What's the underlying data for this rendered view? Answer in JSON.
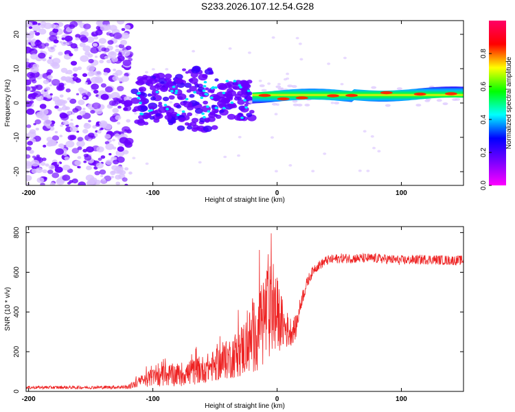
{
  "title": "S233.2026.107.12.54.G28",
  "colors": {
    "snr_line": "#ee2222",
    "blob_strong": "#6a00ff",
    "blob_weak": "#d9c2ff"
  },
  "chart_data": [
    {
      "type": "heatmap",
      "name": "spectrogram",
      "xlabel": "Height of straight line (km)",
      "ylabel": "Frequency (Hz)",
      "xlim": [
        -202,
        150
      ],
      "ylim": [
        -24,
        24
      ],
      "xticks": [
        -200,
        -100,
        0,
        100
      ],
      "yticks": [
        -20,
        -10,
        0,
        10,
        20
      ],
      "grid": false,
      "colorbar": {
        "label": "Normalized spectral amplitude",
        "range": [
          0,
          1
        ],
        "ticks": [
          0.0,
          0.2,
          0.4,
          0.6,
          0.8
        ],
        "tick_labels": [
          "0.0",
          "0.2",
          "0.4",
          "0.6",
          "0.8"
        ],
        "colormap": [
          "#ff00ff",
          "#7a00ff",
          "#0000ff",
          "#00ffff",
          "#00ff00",
          "#ffff00",
          "#ff0000",
          "#ff0066"
        ]
      },
      "regions": [
        {
          "description": "diffuse noise",
          "x_range": [
            -202,
            -118
          ],
          "f_range": [
            -24,
            24
          ],
          "amplitude": 0.1
        },
        {
          "description": "scattered signal",
          "x_range": [
            -115,
            -20
          ],
          "f_range": [
            -12,
            12
          ],
          "amplitude": 0.2
        },
        {
          "description": "stable carrier",
          "x_range": [
            -20,
            150
          ],
          "f_center": [
            2,
            3
          ],
          "amplitude": 0.85
        }
      ]
    },
    {
      "type": "line",
      "name": "snr",
      "xlabel": "Height of straight line (km)",
      "ylabel": "SNR (10 * v/v)",
      "xlim": [
        -202,
        150
      ],
      "ylim": [
        0,
        830
      ],
      "xticks": [
        -200,
        -100,
        0,
        100
      ],
      "yticks": [
        0,
        200,
        400,
        600,
        800
      ],
      "grid": false,
      "series": [
        {
          "name": "SNR",
          "x": [
            -200,
            -150,
            -120,
            -110,
            -100,
            -90,
            -80,
            -70,
            -60,
            -50,
            -40,
            -30,
            -20,
            -15,
            -10,
            -5,
            0,
            5,
            10,
            15,
            20,
            25,
            30,
            40,
            50,
            60,
            80,
            100,
            120,
            140,
            150
          ],
          "y": [
            20,
            20,
            22,
            50,
            70,
            80,
            85,
            95,
            110,
            130,
            160,
            200,
            260,
            320,
            380,
            400,
            390,
            330,
            300,
            320,
            470,
            560,
            620,
            660,
            670,
            670,
            670,
            660,
            665,
            660,
            660
          ],
          "noise_amplitude": [
            8,
            8,
            10,
            30,
            45,
            55,
            60,
            65,
            70,
            80,
            100,
            130,
            180,
            220,
            260,
            240,
            190,
            120,
            80,
            60,
            40,
            30,
            25,
            25,
            25,
            25,
            25,
            25,
            25,
            25,
            25
          ]
        }
      ]
    }
  ]
}
